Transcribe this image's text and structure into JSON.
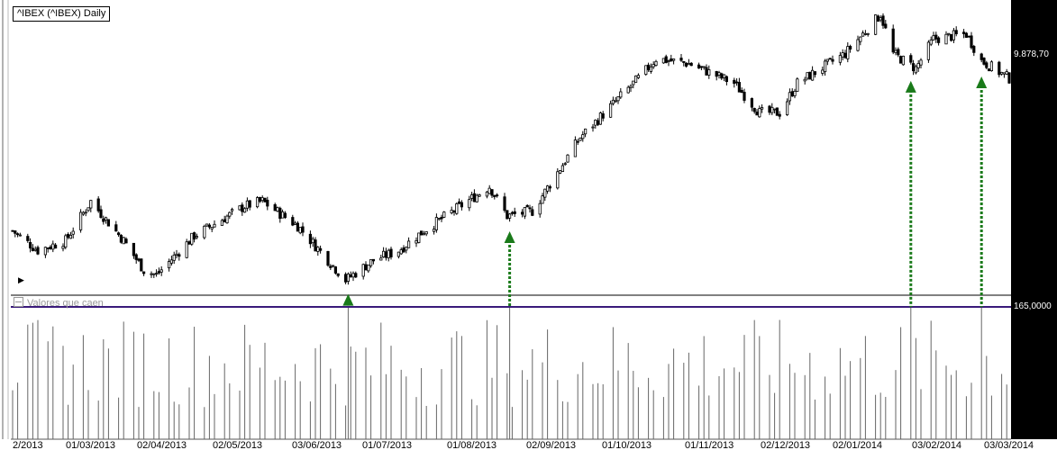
{
  "chart_title": "^IBEX (^IBEX) Daily",
  "subpanel_title": "Valores que caen",
  "last_price_label": "9.878,70",
  "threshold_label": "165,0000",
  "colors": {
    "background": "#ffffff",
    "right_scale": "#000000",
    "candle": "#000000",
    "threshold_line": "#3a1a7a",
    "signal_arrow": "#1a7a1a"
  },
  "chart_data": [
    {
      "type": "candlestick",
      "title": "^IBEX (^IBEX) Daily",
      "x_ticks": [
        "2/2013",
        "01/03/2013",
        "02/04/2013",
        "02/05/2013",
        "03/06/2013",
        "01/07/2013",
        "01/08/2013",
        "02/09/2013",
        "01/10/2013",
        "01/11/2013",
        "02/12/2013",
        "02/01/2014",
        "03/02/2014",
        "03/03/2014"
      ],
      "x_range": [
        "2013-02-12",
        "2014-03-14"
      ],
      "anchors": [
        [
          "2013-02-12",
          8150
        ],
        [
          "2013-02-22",
          7950
        ],
        [
          "2013-03-05",
          8050
        ],
        [
          "2013-03-15",
          8450
        ],
        [
          "2013-03-28",
          8050
        ],
        [
          "2013-04-05",
          7750
        ],
        [
          "2013-04-10",
          7700
        ],
        [
          "2013-04-25",
          8100
        ],
        [
          "2013-05-15",
          8400
        ],
        [
          "2013-05-22",
          8450
        ],
        [
          "2013-06-05",
          8200
        ],
        [
          "2013-06-24",
          7650
        ],
        [
          "2013-07-05",
          7850
        ],
        [
          "2013-07-15",
          7950
        ],
        [
          "2013-07-25",
          8150
        ],
        [
          "2013-08-20",
          8600
        ],
        [
          "2013-08-27",
          8300
        ],
        [
          "2013-09-06",
          8350
        ],
        [
          "2013-09-25",
          9100
        ],
        [
          "2013-10-20",
          9750
        ],
        [
          "2013-10-25",
          9900
        ],
        [
          "2013-11-07",
          9850
        ],
        [
          "2013-11-25",
          9650
        ],
        [
          "2013-12-05",
          9350
        ],
        [
          "2013-12-13",
          9350
        ],
        [
          "2013-12-20",
          9650
        ],
        [
          "2014-01-08",
          9950
        ],
        [
          "2014-01-22",
          10350
        ],
        [
          "2014-01-27",
          9950
        ],
        [
          "2014-02-05",
          9800
        ],
        [
          "2014-02-12",
          10100
        ],
        [
          "2014-02-25",
          10150
        ],
        [
          "2014-03-03",
          9878.7
        ],
        [
          "2014-03-14",
          9700
        ]
      ],
      "last_close": 9878.7,
      "arrows": [
        "2013-06-25",
        "2013-08-28",
        "2014-02-03",
        "2014-03-03"
      ],
      "indicator": {
        "name": "Valores que caen",
        "threshold": 165.0,
        "spikes": [
          "2013-06-25",
          "2013-08-28",
          "2014-02-03",
          "2014-03-03"
        ],
        "max": 165
      }
    }
  ]
}
